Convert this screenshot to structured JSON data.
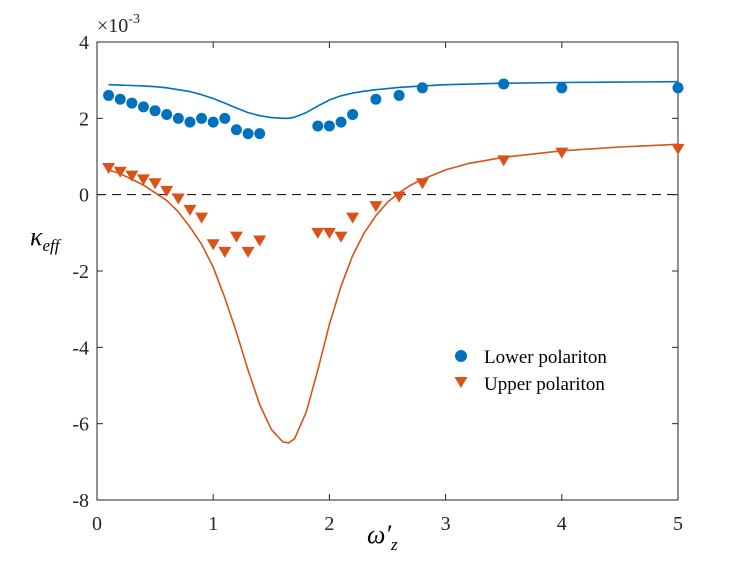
{
  "chart_data": {
    "type": "scatter",
    "title": "",
    "xlabel": "ω′z",
    "xlabel_main": "ω′",
    "xlabel_sub": "z",
    "ylabel": "κeff",
    "ylabel_main": "κ",
    "ylabel_sub": "eff",
    "y_exponent": "×10-3",
    "y_exponent_base": "×10",
    "y_exponent_power": "-3",
    "xlim": [
      0,
      5
    ],
    "ylim": [
      -8,
      4
    ],
    "xticks": [
      0,
      1,
      2,
      3,
      4,
      5
    ],
    "xtick_labels": [
      "0",
      "1",
      "2",
      "3",
      "4",
      "5"
    ],
    "yticks": [
      -8,
      -6,
      -4,
      -2,
      0,
      2,
      4
    ],
    "ytick_labels": [
      "-8",
      "-6",
      "-4",
      "-2",
      "0",
      "2",
      "4"
    ],
    "grid": false,
    "legend_position": "middle-right",
    "zero_line": {
      "y": 0,
      "style": "dashed",
      "color": "#000000"
    },
    "series": [
      {
        "name": "Lower polariton",
        "marker": "circle",
        "color": "#0072BD",
        "x": [
          0.1,
          0.2,
          0.3,
          0.4,
          0.5,
          0.6,
          0.7,
          0.8,
          0.9,
          1.0,
          1.1,
          1.2,
          1.3,
          1.4,
          1.9,
          2.0,
          2.1,
          2.2,
          2.4,
          2.6,
          2.8,
          3.5,
          4.0,
          5.0
        ],
        "y": [
          2.6,
          2.5,
          2.4,
          2.3,
          2.2,
          2.1,
          2.0,
          1.9,
          2.0,
          1.9,
          2.0,
          1.7,
          1.6,
          1.6,
          1.8,
          1.8,
          1.9,
          2.1,
          2.5,
          2.6,
          2.8,
          2.9,
          2.8,
          2.8
        ]
      },
      {
        "name": "Upper polariton",
        "marker": "triangle-down",
        "color": "#D95319",
        "x": [
          0.1,
          0.2,
          0.3,
          0.4,
          0.5,
          0.6,
          0.7,
          0.8,
          0.9,
          1.0,
          1.1,
          1.2,
          1.3,
          1.4,
          1.9,
          2.0,
          2.1,
          2.2,
          2.4,
          2.6,
          2.8,
          3.5,
          4.0,
          5.0
        ],
        "y": [
          0.7,
          0.6,
          0.5,
          0.4,
          0.3,
          0.1,
          -0.1,
          -0.4,
          -0.6,
          -1.3,
          -1.5,
          -1.1,
          -1.5,
          -1.2,
          -1.0,
          -1.0,
          -1.1,
          -0.6,
          -0.3,
          -0.05,
          0.3,
          0.9,
          1.1,
          1.2
        ]
      }
    ],
    "fit_curves": [
      {
        "name": "Lower polariton fit",
        "color": "#0072BD",
        "x": [
          0.1,
          0.2,
          0.3,
          0.4,
          0.5,
          0.6,
          0.7,
          0.8,
          0.9,
          1.0,
          1.1,
          1.2,
          1.3,
          1.4,
          1.5,
          1.6,
          1.65,
          1.7,
          1.8,
          1.9,
          2.0,
          2.1,
          2.2,
          2.3,
          2.4,
          2.5,
          2.6,
          2.8,
          3.0,
          3.5,
          4.0,
          4.5,
          5.0
        ],
        "y": [
          2.88,
          2.87,
          2.86,
          2.85,
          2.83,
          2.8,
          2.75,
          2.7,
          2.62,
          2.52,
          2.4,
          2.27,
          2.15,
          2.07,
          2.02,
          2.0,
          2.0,
          2.03,
          2.15,
          2.32,
          2.48,
          2.59,
          2.66,
          2.71,
          2.75,
          2.78,
          2.81,
          2.85,
          2.88,
          2.92,
          2.94,
          2.95,
          2.96
        ]
      },
      {
        "name": "Upper polariton fit",
        "color": "#D95319",
        "x": [
          0.1,
          0.2,
          0.3,
          0.4,
          0.5,
          0.6,
          0.7,
          0.8,
          0.9,
          1.0,
          1.1,
          1.2,
          1.3,
          1.4,
          1.5,
          1.6,
          1.65,
          1.7,
          1.8,
          1.9,
          2.0,
          2.1,
          2.2,
          2.3,
          2.4,
          2.5,
          2.6,
          2.7,
          2.8,
          3.0,
          3.2,
          3.5,
          4.0,
          4.5,
          5.0
        ],
        "y": [
          0.65,
          0.55,
          0.4,
          0.25,
          0.05,
          -0.15,
          -0.45,
          -0.85,
          -1.3,
          -1.9,
          -2.7,
          -3.6,
          -4.6,
          -5.5,
          -6.15,
          -6.48,
          -6.5,
          -6.4,
          -5.7,
          -4.6,
          -3.4,
          -2.4,
          -1.6,
          -1.0,
          -0.55,
          -0.2,
          0.05,
          0.25,
          0.4,
          0.65,
          0.82,
          0.98,
          1.15,
          1.25,
          1.32
        ]
      }
    ]
  }
}
